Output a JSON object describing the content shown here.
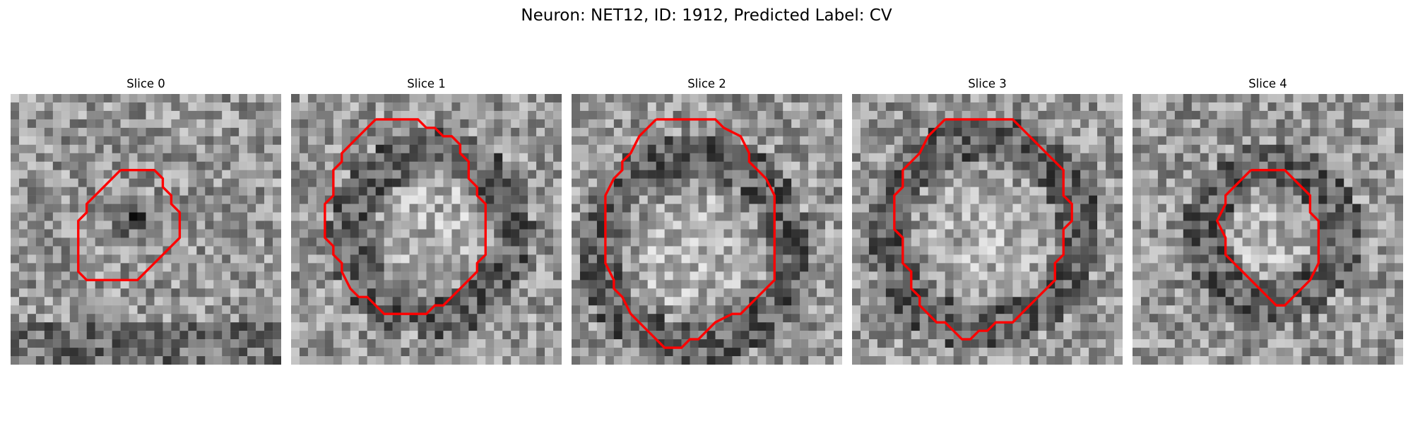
{
  "figure": {
    "title": "Neuron: NET12, ID: 1912, Predicted Label: CV"
  },
  "panels": [
    {
      "title": "Slice 0",
      "dark_center": [
        14,
        14
      ],
      "radius": 3.5
    },
    {
      "title": "Slice 1",
      "dark_center": [
        16,
        16
      ],
      "radius": 6
    },
    {
      "title": "Slice 2",
      "dark_center": [
        14,
        18
      ],
      "radius": 7
    },
    {
      "title": "Slice 3",
      "dark_center": [
        15,
        16
      ],
      "radius": 7
    },
    {
      "title": "Slice 4",
      "dark_center": [
        16,
        16
      ],
      "radius": 5
    }
  ],
  "colors": {
    "outline": "#ff0000",
    "grayscale": "gray"
  }
}
